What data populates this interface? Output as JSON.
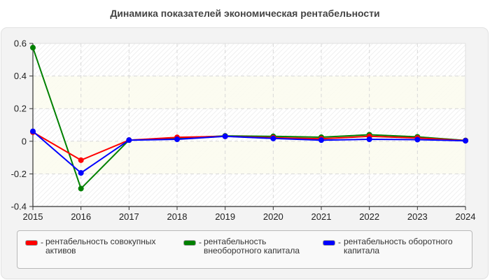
{
  "title": "Динамика показателей экономическая рентабельности",
  "legend": {
    "items": [
      {
        "color": "#ff0000",
        "dash": "-",
        "lines": [
          "рентабельность совокупных",
          "активов"
        ]
      },
      {
        "color": "#008000",
        "dash": "-",
        "lines": [
          "рентабельность",
          "внеоборотного капитала"
        ]
      },
      {
        "color": "#0000ff",
        "dash": "-",
        "lines": [
          "рентабельность оборотного",
          "капитала"
        ]
      }
    ]
  },
  "chart_data": {
    "type": "line",
    "title": "Динамика показателей экономическая рентабельности",
    "xlabel": "",
    "ylabel": "",
    "categories": [
      "2015",
      "2016",
      "2017",
      "2018",
      "2019",
      "2020",
      "2021",
      "2022",
      "2023",
      "2024"
    ],
    "yticks": [
      "0.6",
      "0.4",
      "0.2",
      "0",
      "-0.2",
      "-0.4"
    ],
    "ylim": [
      -0.4,
      0.6
    ],
    "grid": true,
    "legend_position": "bottom",
    "series": [
      {
        "name": "рентабельность совокупных активов",
        "color": "#ff0000",
        "values": [
          0.056,
          -0.116,
          0.007,
          0.024,
          0.03,
          0.022,
          0.015,
          0.03,
          0.02,
          0.004
        ]
      },
      {
        "name": "рентабельность внеоборотного капитала",
        "color": "#008000",
        "values": [
          0.574,
          -0.29,
          0.007,
          0.019,
          0.033,
          0.03,
          0.025,
          0.04,
          0.027,
          0.005
        ]
      },
      {
        "name": "рентабельность оборотного капитала",
        "color": "#0000ff",
        "values": [
          0.061,
          -0.194,
          0.007,
          0.012,
          0.03,
          0.017,
          0.007,
          0.012,
          0.01,
          0.003
        ]
      }
    ]
  }
}
